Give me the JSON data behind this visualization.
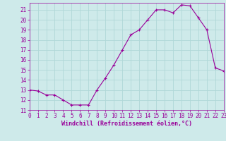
{
  "x": [
    0,
    1,
    2,
    3,
    4,
    5,
    6,
    7,
    8,
    9,
    10,
    11,
    12,
    13,
    14,
    15,
    16,
    17,
    18,
    19,
    20,
    21,
    22,
    23
  ],
  "y": [
    13.0,
    12.9,
    12.5,
    12.5,
    12.0,
    11.5,
    11.5,
    11.5,
    13.0,
    14.2,
    15.5,
    17.0,
    18.5,
    19.0,
    20.0,
    21.0,
    21.0,
    20.7,
    21.5,
    21.4,
    20.2,
    19.0,
    15.2,
    14.9
  ],
  "line_color": "#990099",
  "marker": "+",
  "bg_color": "#ceeaea",
  "grid_color": "#b0d8d8",
  "xlabel": "Windchill (Refroidissement éolien,°C)",
  "xlabel_color": "#990099",
  "tick_color": "#990099",
  "xlim": [
    0,
    23
  ],
  "ylim": [
    11,
    21.7
  ],
  "yticks": [
    11,
    12,
    13,
    14,
    15,
    16,
    17,
    18,
    19,
    20,
    21
  ],
  "xticks": [
    0,
    1,
    2,
    3,
    4,
    5,
    6,
    7,
    8,
    9,
    10,
    11,
    12,
    13,
    14,
    15,
    16,
    17,
    18,
    19,
    20,
    21,
    22,
    23
  ],
  "xlabel_fontsize": 6.0,
  "tick_fontsize": 5.5,
  "linewidth": 0.8,
  "markersize": 2.5
}
